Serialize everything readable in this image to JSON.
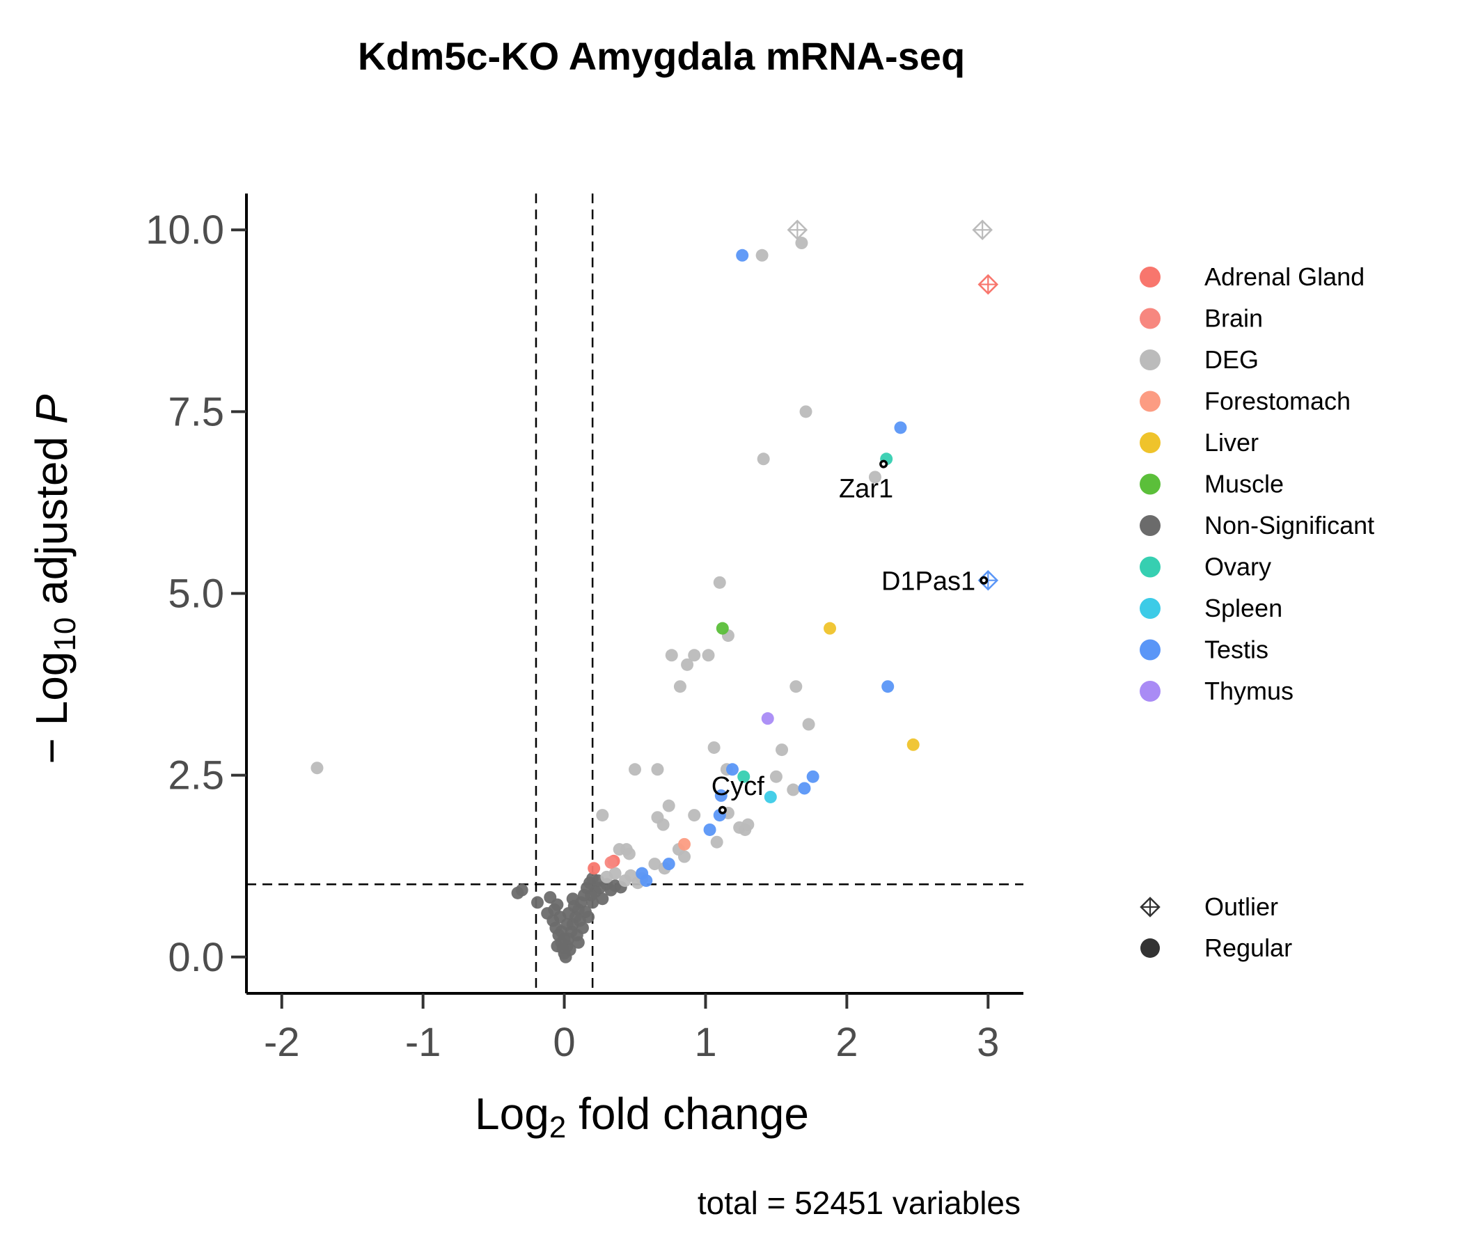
{
  "chart_data": {
    "type": "scatter",
    "title": "Kdm5c-KO Amygdala mRNA-seq",
    "xlabel_main": "Log",
    "xlabel_sub": "2",
    "xlabel_rest": " fold change",
    "ylabel_prefix": "− Log",
    "ylabel_sub": "10",
    "ylabel_mid": " adjusted ",
    "ylabel_italic": "P",
    "caption": "total = 52451 variables",
    "xlim": [
      -2.25,
      3.25
    ],
    "ylim": [
      -0.5,
      10.5
    ],
    "xticks": [
      -2,
      -1,
      0,
      1,
      2,
      3
    ],
    "xtick_labels": [
      "-2",
      "-1",
      "0",
      "1",
      "2",
      "3"
    ],
    "yticks": [
      0,
      2.5,
      5,
      7.5,
      10
    ],
    "ytick_labels": [
      "0.0",
      "2.5",
      "5.0",
      "7.5",
      "10.0"
    ],
    "cutoffs": {
      "log2fc": [
        -0.2,
        0.2
      ],
      "neg_log10_p": 1
    },
    "grid": false,
    "legend_position": "right",
    "colors": {
      "Adrenal Gland": "#f8766d",
      "Brain": "#f7877f",
      "DEG": "#bbbbbb",
      "Forestomach": "#fc9c82",
      "Liver": "#efc32b",
      "Muscle": "#5bbf3a",
      "Non-Significant": "#6b6b6b",
      "Ovary": "#36cfb1",
      "Spleen": "#3ccbe7",
      "Testis": "#5a96f7",
      "Thymus": "#a98bf5"
    },
    "legend_categories": [
      "Adrenal Gland",
      "Brain",
      "DEG",
      "Forestomach",
      "Liver",
      "Muscle",
      "Non-Significant",
      "Ovary",
      "Spleen",
      "Testis",
      "Thymus"
    ],
    "legend_shapes": [
      "Outlier",
      "Regular"
    ],
    "series": [
      {
        "name": "Adrenal Gland",
        "points": [
          [
            0.21,
            1.22
          ],
          [
            0.35,
            1.32
          ]
        ]
      },
      {
        "name": "Brain",
        "points": [
          [
            0.33,
            1.3
          ]
        ]
      },
      {
        "name": "DEG",
        "points": [
          [
            -1.75,
            2.6
          ],
          [
            1.4,
            9.65
          ],
          [
            1.68,
            9.82
          ],
          [
            1.71,
            7.5
          ],
          [
            1.41,
            6.85
          ],
          [
            2.2,
            6.6
          ],
          [
            1.1,
            5.15
          ],
          [
            1.16,
            4.42
          ],
          [
            0.76,
            4.15
          ],
          [
            0.92,
            4.15
          ],
          [
            1.02,
            4.15
          ],
          [
            0.87,
            4.02
          ],
          [
            0.82,
            3.72
          ],
          [
            1.64,
            3.72
          ],
          [
            1.73,
            3.2
          ],
          [
            1.06,
            2.88
          ],
          [
            1.54,
            2.85
          ],
          [
            0.5,
            2.58
          ],
          [
            0.66,
            2.58
          ],
          [
            1.15,
            2.58
          ],
          [
            1.5,
            2.48
          ],
          [
            1.62,
            2.3
          ],
          [
            0.27,
            1.95
          ],
          [
            0.74,
            2.08
          ],
          [
            0.66,
            1.92
          ],
          [
            0.92,
            1.95
          ],
          [
            0.7,
            1.82
          ],
          [
            1.16,
            1.98
          ],
          [
            1.24,
            1.78
          ],
          [
            1.28,
            1.75
          ],
          [
            1.3,
            1.82
          ],
          [
            1.08,
            1.58
          ],
          [
            0.81,
            1.48
          ],
          [
            0.85,
            1.38
          ],
          [
            0.39,
            1.48
          ],
          [
            0.44,
            1.48
          ],
          [
            0.46,
            1.42
          ],
          [
            0.64,
            1.28
          ],
          [
            0.71,
            1.22
          ],
          [
            0.47,
            1.12
          ],
          [
            0.55,
            1.08
          ],
          [
            0.36,
            1.15
          ],
          [
            0.43,
            1.05
          ],
          [
            0.3,
            1.1
          ],
          [
            0.52,
            1.02
          ]
        ]
      },
      {
        "name": "Forestomach",
        "points": [
          [
            0.85,
            1.55
          ]
        ]
      },
      {
        "name": "Liver",
        "points": [
          [
            1.88,
            4.52
          ],
          [
            2.47,
            2.92
          ]
        ]
      },
      {
        "name": "Muscle",
        "points": [
          [
            1.12,
            4.52
          ]
        ]
      },
      {
        "name": "Non-Significant",
        "points": [
          [
            -0.33,
            0.88
          ],
          [
            -0.3,
            0.92
          ],
          [
            -0.19,
            0.75
          ],
          [
            -0.1,
            0.82
          ],
          [
            -0.05,
            0.72
          ],
          [
            -0.12,
            0.6
          ],
          [
            -0.08,
            0.5
          ],
          [
            -0.06,
            0.4
          ],
          [
            -0.04,
            0.3
          ],
          [
            -0.02,
            0.2
          ],
          [
            -0.01,
            0.12
          ],
          [
            0.0,
            0.05
          ],
          [
            0.01,
            0.0
          ],
          [
            0.02,
            0.15
          ],
          [
            0.03,
            0.25
          ],
          [
            0.05,
            0.35
          ],
          [
            0.06,
            0.45
          ],
          [
            0.08,
            0.55
          ],
          [
            0.1,
            0.65
          ],
          [
            0.12,
            0.75
          ],
          [
            0.14,
            0.85
          ],
          [
            0.16,
            0.95
          ],
          [
            0.18,
            1.02
          ],
          [
            0.2,
            1.08
          ],
          [
            0.22,
            0.9
          ],
          [
            0.25,
            0.95
          ],
          [
            0.27,
            0.8
          ],
          [
            0.3,
            1.0
          ],
          [
            0.33,
            0.92
          ],
          [
            0.36,
            0.98
          ],
          [
            0.4,
            0.96
          ],
          [
            0.03,
            0.6
          ],
          [
            0.07,
            0.7
          ],
          [
            0.11,
            0.5
          ],
          [
            0.15,
            0.62
          ],
          [
            0.2,
            0.75
          ],
          [
            -0.03,
            0.55
          ],
          [
            -0.07,
            0.65
          ],
          [
            0.04,
            0.1
          ],
          [
            -0.02,
            0.35
          ],
          [
            0.09,
            0.3
          ],
          [
            0.13,
            0.4
          ],
          [
            0.17,
            0.55
          ],
          [
            0.19,
            0.85
          ],
          [
            0.24,
            1.05
          ],
          [
            0.02,
            0.45
          ],
          [
            0.06,
            0.8
          ],
          [
            -0.05,
            0.15
          ],
          [
            0.0,
            0.25
          ],
          [
            0.1,
            0.2
          ]
        ]
      },
      {
        "name": "Ovary",
        "points": [
          [
            2.28,
            6.85
          ],
          [
            1.27,
            2.48
          ]
        ]
      },
      {
        "name": "Spleen",
        "points": [
          [
            1.46,
            2.2
          ]
        ]
      },
      {
        "name": "Testis",
        "points": [
          [
            1.26,
            9.65
          ],
          [
            2.38,
            7.28
          ],
          [
            2.29,
            3.72
          ],
          [
            1.19,
            2.58
          ],
          [
            1.76,
            2.48
          ],
          [
            1.7,
            2.32
          ],
          [
            1.11,
            2.22
          ],
          [
            1.1,
            1.95
          ],
          [
            1.03,
            1.75
          ],
          [
            0.74,
            1.28
          ],
          [
            0.55,
            1.15
          ],
          [
            0.58,
            1.05
          ]
        ]
      },
      {
        "name": "Thymus",
        "points": [
          [
            1.44,
            3.28
          ]
        ]
      }
    ],
    "outliers": [
      {
        "category": "DEG",
        "x": 1.65,
        "y": 10
      },
      {
        "category": "DEG",
        "x": 2.96,
        "y": 10
      },
      {
        "category": "Adrenal Gland",
        "x": 3.0,
        "y": 9.25
      },
      {
        "category": "Testis",
        "x": 3.0,
        "y": 5.18
      }
    ],
    "labeled_genes": [
      {
        "label": "Zar1",
        "x": 2.26,
        "y": 6.78,
        "anchor": "end"
      },
      {
        "label": "D1Pas1",
        "x": 2.97,
        "y": 5.18,
        "anchor": "end"
      },
      {
        "label": "Cycf",
        "x": 1.12,
        "y": 2.02,
        "anchor": "middle"
      }
    ]
  }
}
